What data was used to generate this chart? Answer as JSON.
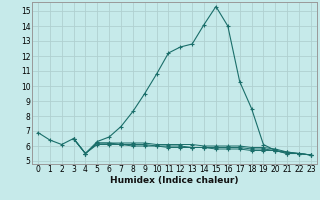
{
  "xlabel": "Humidex (Indice chaleur)",
  "bg_color": "#c6eaea",
  "grid_color": "#b0d0d0",
  "line_color": "#1a6e6a",
  "xlim": [
    -0.5,
    23.5
  ],
  "ylim": [
    4.8,
    15.6
  ],
  "yticks": [
    5,
    6,
    7,
    8,
    9,
    10,
    11,
    12,
    13,
    14,
    15
  ],
  "xticks": [
    0,
    1,
    2,
    3,
    4,
    5,
    6,
    7,
    8,
    9,
    10,
    11,
    12,
    13,
    14,
    15,
    16,
    17,
    18,
    19,
    20,
    21,
    22,
    23
  ],
  "curve1_x": [
    0,
    1,
    2,
    3,
    4,
    5,
    6,
    7,
    8,
    9,
    10,
    11,
    12,
    13,
    14,
    15,
    16,
    17,
    18,
    19,
    20,
    21,
    22,
    23
  ],
  "curve1_y": [
    6.9,
    6.4,
    6.1,
    6.5,
    5.5,
    6.3,
    6.6,
    7.3,
    8.3,
    9.5,
    10.8,
    12.2,
    12.6,
    12.8,
    14.1,
    15.3,
    14.0,
    10.3,
    8.5,
    6.1,
    5.7,
    5.5,
    5.5,
    5.4
  ],
  "curve2_x": [
    3,
    4,
    5,
    6,
    7,
    8,
    9,
    10,
    11,
    12,
    13,
    14,
    15,
    16,
    17,
    18,
    19,
    20,
    21,
    22,
    23
  ],
  "curve2_y": [
    6.5,
    5.5,
    6.2,
    6.2,
    6.2,
    6.2,
    6.2,
    6.1,
    6.1,
    6.1,
    6.1,
    6.0,
    6.0,
    6.0,
    6.0,
    5.9,
    5.9,
    5.8,
    5.6,
    5.5,
    5.4
  ],
  "curve3_x": [
    3,
    4,
    5,
    6,
    7,
    8,
    9,
    10,
    11,
    12,
    13,
    14,
    15,
    16,
    17,
    18,
    19,
    20,
    21,
    22,
    23
  ],
  "curve3_y": [
    6.5,
    5.5,
    6.2,
    6.2,
    6.1,
    6.1,
    6.1,
    6.0,
    6.0,
    6.0,
    5.9,
    5.9,
    5.9,
    5.9,
    5.9,
    5.8,
    5.8,
    5.7,
    5.6,
    5.5,
    5.4
  ],
  "curve4_x": [
    3,
    4,
    5,
    6,
    7,
    8,
    9,
    10,
    11,
    12,
    13,
    14,
    15,
    16,
    17,
    18,
    19,
    20,
    21,
    22,
    23
  ],
  "curve4_y": [
    6.5,
    5.5,
    6.1,
    6.1,
    6.1,
    6.0,
    6.0,
    6.0,
    5.9,
    5.9,
    5.9,
    5.9,
    5.8,
    5.8,
    5.8,
    5.7,
    5.7,
    5.7,
    5.5,
    5.5,
    5.4
  ]
}
